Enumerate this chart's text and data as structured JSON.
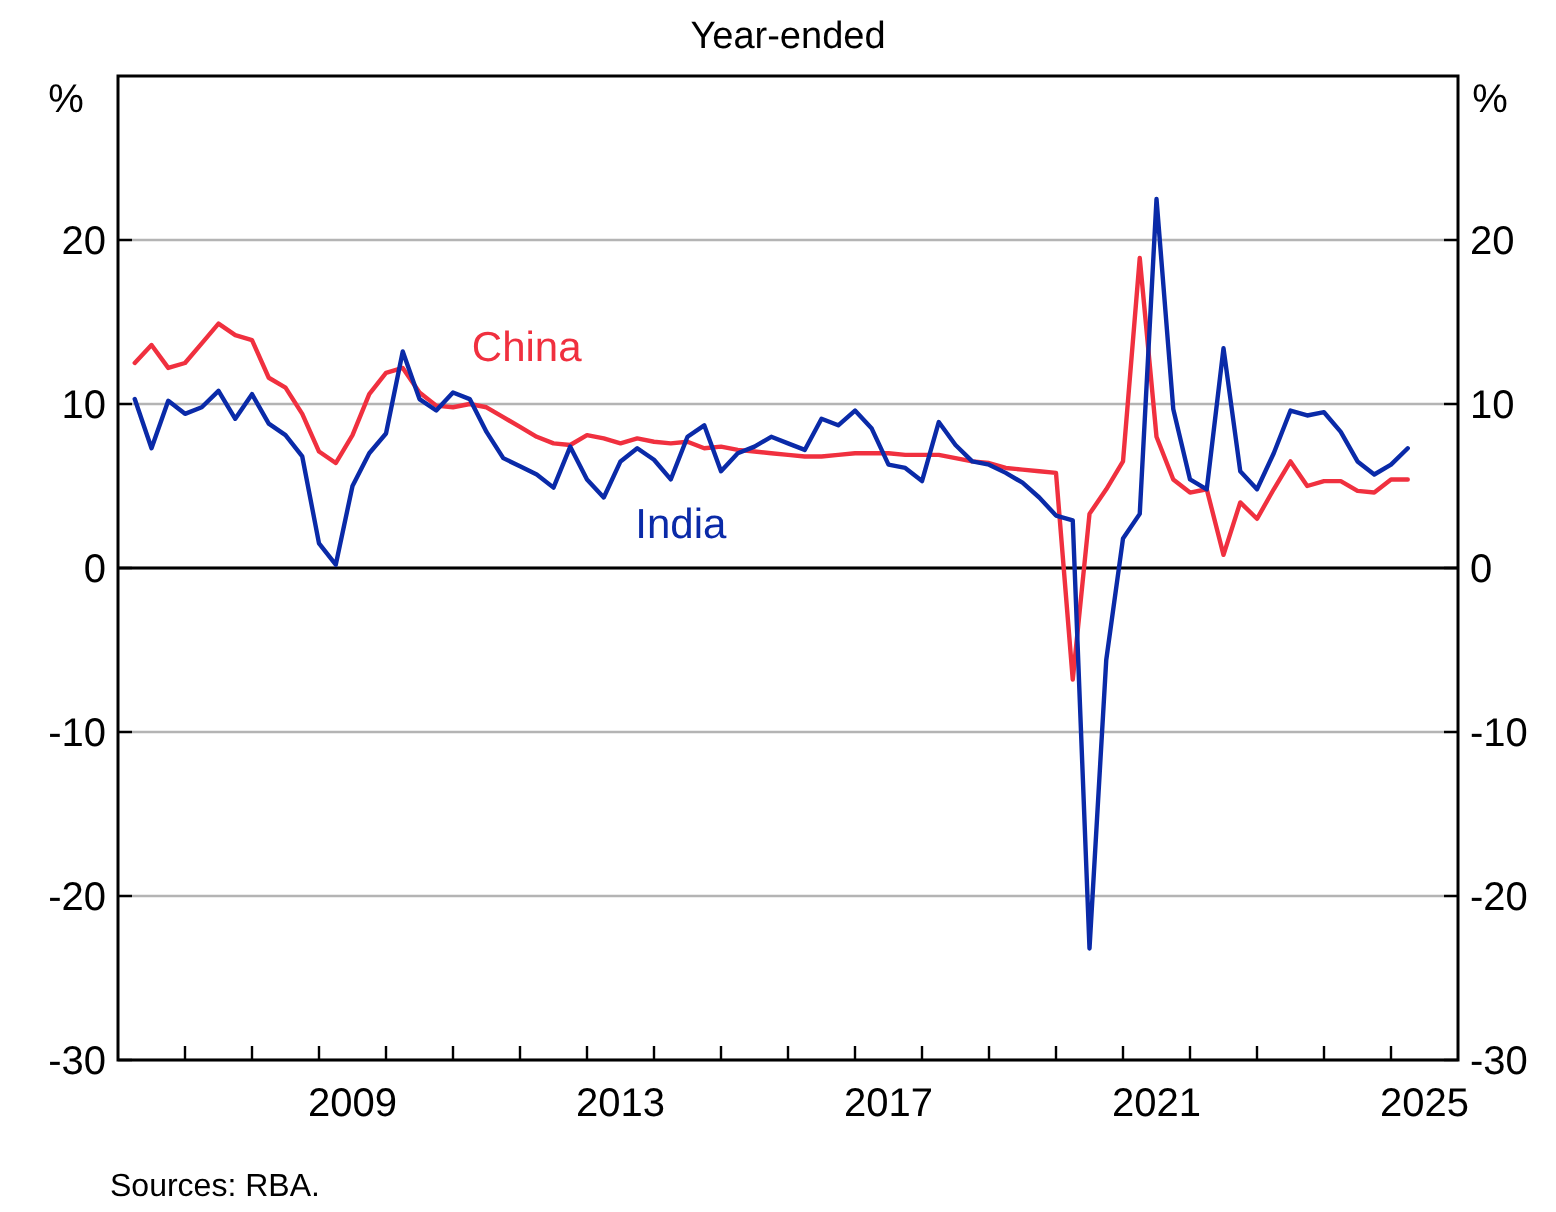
{
  "chart_data": {
    "type": "line",
    "title": "Year-ended",
    "ylabel": "%",
    "y2label": "%",
    "x": [
      2006.25,
      2006.5,
      2006.75,
      2007,
      2007.25,
      2007.5,
      2007.75,
      2008,
      2008.25,
      2008.5,
      2008.75,
      2009,
      2009.25,
      2009.5,
      2009.75,
      2010,
      2010.25,
      2010.5,
      2010.75,
      2011,
      2011.25,
      2011.5,
      2011.75,
      2012,
      2012.25,
      2012.5,
      2012.75,
      2013,
      2013.25,
      2013.5,
      2013.75,
      2014,
      2014.25,
      2014.5,
      2014.75,
      2015,
      2015.25,
      2015.5,
      2015.75,
      2016,
      2016.25,
      2016.5,
      2016.75,
      2017,
      2017.25,
      2017.5,
      2017.75,
      2018,
      2018.25,
      2018.5,
      2018.75,
      2019,
      2019.25,
      2019.5,
      2019.75,
      2020,
      2020.25,
      2020.5,
      2020.75,
      2021,
      2021.25,
      2021.5,
      2021.75,
      2022,
      2022.25,
      2022.5,
      2022.75,
      2023,
      2023.25,
      2023.5,
      2023.75,
      2024,
      2024.25,
      2024.5,
      2024.75,
      2025,
      2025.25
    ],
    "series": [
      {
        "name": "China",
        "color": "#f0303f",
        "values": [
          12.5,
          13.6,
          12.2,
          12.5,
          13.7,
          14.9,
          14.2,
          13.9,
          11.6,
          11.0,
          9.4,
          7.1,
          6.4,
          8.1,
          10.6,
          11.9,
          12.2,
          10.7,
          9.9,
          9.8,
          10.0,
          9.8,
          9.2,
          8.6,
          8.0,
          7.6,
          7.5,
          8.1,
          7.9,
          7.6,
          7.9,
          7.7,
          7.6,
          7.7,
          7.3,
          7.4,
          7.2,
          7.1,
          7.0,
          6.9,
          6.8,
          6.8,
          6.9,
          7.0,
          7.0,
          7.0,
          6.9,
          6.9,
          6.9,
          6.7,
          6.5,
          6.4,
          6.1,
          6.0,
          5.9,
          5.8,
          -6.8,
          3.3,
          4.8,
          6.5,
          18.9,
          8.0,
          5.4,
          4.6,
          4.8,
          0.8,
          4.0,
          3.0,
          4.8,
          6.5,
          5.0,
          5.3,
          5.3,
          4.7,
          4.6,
          5.4,
          5.4
        ]
      },
      {
        "name": "India",
        "color": "#0a2aa8",
        "values": [
          10.3,
          7.3,
          10.2,
          9.4,
          9.8,
          10.8,
          9.1,
          10.6,
          8.8,
          8.1,
          6.8,
          1.5,
          0.2,
          5.0,
          7.0,
          8.2,
          13.2,
          10.3,
          9.6,
          10.7,
          10.3,
          8.3,
          6.7,
          6.2,
          5.7,
          4.9,
          7.4,
          5.4,
          4.3,
          6.5,
          7.3,
          6.6,
          5.4,
          8.0,
          8.7,
          5.9,
          7.0,
          7.4,
          8.0,
          7.6,
          7.2,
          9.1,
          8.7,
          9.6,
          8.5,
          6.3,
          6.1,
          5.3,
          8.9,
          7.5,
          6.5,
          6.3,
          5.8,
          5.2,
          4.3,
          3.2,
          2.9,
          -23.2,
          -5.6,
          1.8,
          3.3,
          22.5,
          9.7,
          5.4,
          4.8,
          13.4,
          5.9,
          4.8,
          7.0,
          9.6,
          9.3,
          9.5,
          8.3,
          6.5,
          5.7,
          6.3,
          7.3
        ]
      }
    ],
    "xlim": [
      2006,
      2026
    ],
    "xticks": [
      {
        "value": 2007,
        "label": null
      },
      {
        "value": 2008,
        "label": null
      },
      {
        "value": 2009,
        "label": null
      },
      {
        "value": 2009.5,
        "label": "2009"
      },
      {
        "value": 2010,
        "label": null
      },
      {
        "value": 2011,
        "label": null
      },
      {
        "value": 2012,
        "label": null
      },
      {
        "value": 2013,
        "label": null
      },
      {
        "value": 2013.5,
        "label": "2013"
      },
      {
        "value": 2014,
        "label": null
      },
      {
        "value": 2015,
        "label": null
      },
      {
        "value": 2016,
        "label": null
      },
      {
        "value": 2017,
        "label": null
      },
      {
        "value": 2017.5,
        "label": "2017"
      },
      {
        "value": 2018,
        "label": null
      },
      {
        "value": 2019,
        "label": null
      },
      {
        "value": 2020,
        "label": null
      },
      {
        "value": 2021,
        "label": null
      },
      {
        "value": 2021.5,
        "label": "2021"
      },
      {
        "value": 2022,
        "label": null
      },
      {
        "value": 2023,
        "label": null
      },
      {
        "value": 2024,
        "label": null
      },
      {
        "value": 2025,
        "label": null
      },
      {
        "value": 2025.5,
        "label": "2025"
      }
    ],
    "ylim": [
      -30,
      30
    ],
    "yticks": [
      -30,
      -20,
      -10,
      0,
      10,
      20
    ],
    "y2lim": [
      -30,
      30
    ],
    "y2ticks": [
      -30,
      -20,
      -10,
      0,
      10,
      20
    ],
    "ref_lines": [
      {
        "axis": "y",
        "value": 0,
        "color": "#000000"
      }
    ],
    "grid": "y",
    "marker": "none",
    "line_style": "solid",
    "annotations": [
      "Sources: RBA."
    ]
  }
}
